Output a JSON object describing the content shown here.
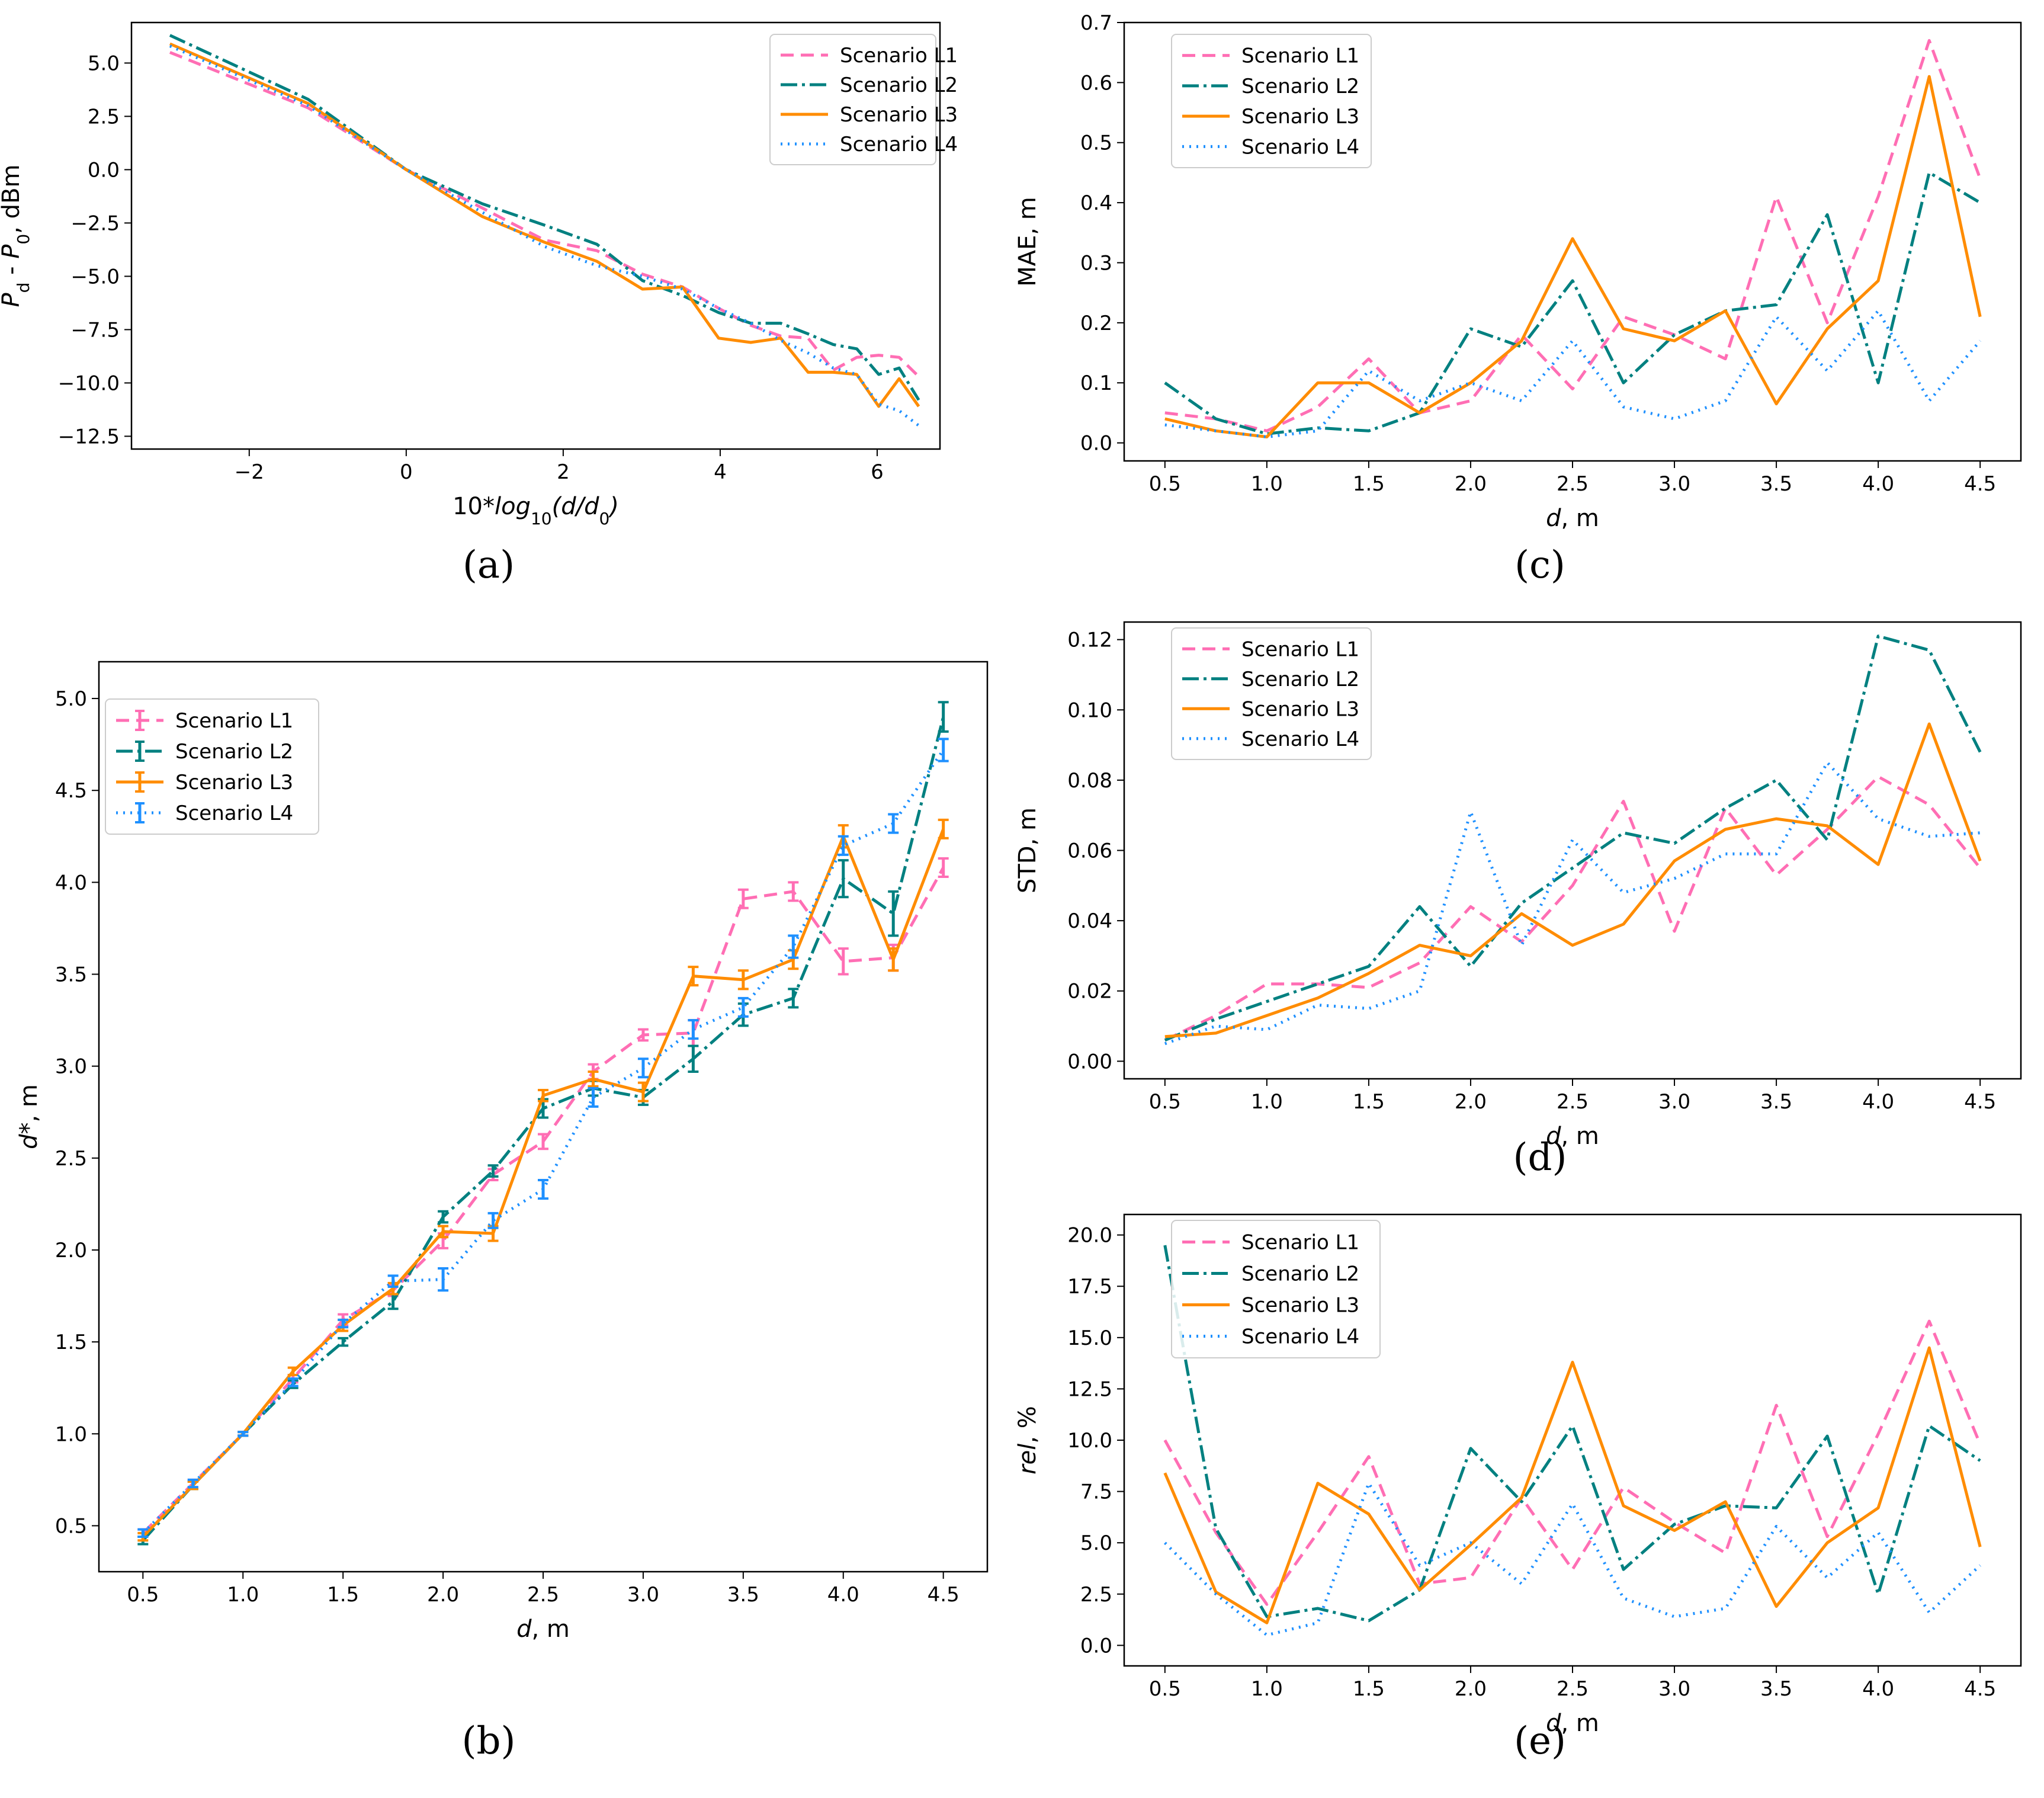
{
  "figure": {
    "panel_labels": [
      "(a)",
      "(b)",
      "(c)",
      "(d)",
      "(e)"
    ]
  },
  "chart_data": [
    {
      "id": "a",
      "panel_label": "(a)",
      "type": "line",
      "title": "",
      "xlabel": "10*log10(d/d0)",
      "ylabel": "Pd - P0, dBm",
      "xlim": [
        -3.5,
        6.8
      ],
      "ylim": [
        -13.1,
        6.9
      ],
      "xticks": [
        -2,
        0,
        2,
        4,
        6
      ],
      "xtick_labels": [
        "−2",
        "0",
        "2",
        "4",
        "6"
      ],
      "yticks": [
        5.0,
        2.5,
        0.0,
        -2.5,
        -5.0,
        -7.5,
        -10.0,
        -12.5
      ],
      "ytick_labels": [
        "5.0",
        "2.5",
        "0.0",
        "−2.5",
        "−5.0",
        "−7.5",
        "−10.0",
        "−12.5"
      ],
      "legend": "top-right",
      "x": [
        -3.01,
        -1.25,
        0,
        0.97,
        1.76,
        2.43,
        3.01,
        3.52,
        3.98,
        4.39,
        4.77,
        5.12,
        5.44,
        5.74,
        6.02,
        6.28,
        6.53
      ],
      "series": [
        {
          "name": "Scenario L1",
          "color": "#ff6eb4",
          "dash": "22,12",
          "values": [
            5.5,
            2.9,
            0.0,
            -1.8,
            -3.3,
            -3.8,
            -4.9,
            -5.5,
            -6.5,
            -7.3,
            -7.8,
            -7.9,
            -9.4,
            -8.8,
            -8.7,
            -8.8,
            -9.7
          ]
        },
        {
          "name": "Scenario L2",
          "color": "#008080",
          "dash": "28,8,5,8",
          "values": [
            6.3,
            3.3,
            0.0,
            -1.6,
            -2.6,
            -3.5,
            -5.2,
            -5.9,
            -6.7,
            -7.2,
            -7.2,
            -7.7,
            -8.2,
            -8.4,
            -9.6,
            -9.3,
            -10.8
          ]
        },
        {
          "name": "Scenario L3",
          "color": "#ff8c00",
          "dash": "",
          "values": [
            5.9,
            3.1,
            0.0,
            -2.2,
            -3.4,
            -4.3,
            -5.6,
            -5.5,
            -7.9,
            -8.1,
            -7.9,
            -9.5,
            -9.5,
            -9.6,
            -11.1,
            -9.8,
            -11.1
          ]
        },
        {
          "name": "Scenario L4",
          "color": "#1e90ff",
          "dash": "3,9",
          "values": [
            5.8,
            3.0,
            0.0,
            -2.0,
            -3.6,
            -4.5,
            -5.0,
            -5.6,
            -6.5,
            -7.2,
            -8.0,
            -8.6,
            -9.3,
            -9.6,
            -11.0,
            -11.3,
            -12.0
          ]
        }
      ]
    },
    {
      "id": "b",
      "panel_label": "(b)",
      "type": "line",
      "title": "",
      "xlabel": "d, m",
      "ylabel": "d*, m",
      "xlim": [
        0.28,
        4.72
      ],
      "ylim": [
        0.25,
        5.2
      ],
      "xticks": [
        0.5,
        1.0,
        1.5,
        2.0,
        2.5,
        3.0,
        3.5,
        4.0,
        4.5
      ],
      "xtick_labels": [
        "0.5",
        "1.0",
        "1.5",
        "2.0",
        "2.5",
        "3.0",
        "3.5",
        "4.0",
        "4.5"
      ],
      "yticks": [
        0.5,
        1.0,
        1.5,
        2.0,
        2.5,
        3.0,
        3.5,
        4.0,
        4.5,
        5.0
      ],
      "ytick_labels": [
        "0.5",
        "1.0",
        "1.5",
        "2.0",
        "2.5",
        "3.0",
        "3.5",
        "4.0",
        "4.5",
        "5.0"
      ],
      "legend": "top-left",
      "error_bars": true,
      "x": [
        0.5,
        0.75,
        1.0,
        1.25,
        1.5,
        1.75,
        2.0,
        2.25,
        2.5,
        2.75,
        3.0,
        3.25,
        3.5,
        3.75,
        4.0,
        4.25,
        4.5
      ],
      "series": [
        {
          "name": "Scenario L1",
          "color": "#ff6eb4",
          "dash": "22,12",
          "values": [
            0.46,
            0.73,
            1.0,
            1.3,
            1.62,
            1.78,
            2.05,
            2.41,
            2.59,
            2.97,
            3.17,
            3.18,
            3.91,
            3.95,
            3.57,
            3.59,
            4.08
          ],
          "errors": [
            0.02,
            0.02,
            0.01,
            0.02,
            0.03,
            0.03,
            0.04,
            0.03,
            0.04,
            0.04,
            0.03,
            0.07,
            0.05,
            0.05,
            0.07,
            0.07,
            0.05
          ]
        },
        {
          "name": "Scenario L2",
          "color": "#008080",
          "dash": "28,8,5,8",
          "values": [
            0.42,
            0.72,
            1.0,
            1.27,
            1.5,
            1.72,
            2.18,
            2.43,
            2.77,
            2.88,
            2.83,
            3.04,
            3.28,
            3.37,
            4.02,
            3.83,
            4.9
          ],
          "errors": [
            0.02,
            0.02,
            0.01,
            0.02,
            0.02,
            0.04,
            0.03,
            0.03,
            0.05,
            0.04,
            0.04,
            0.07,
            0.06,
            0.05,
            0.1,
            0.12,
            0.08
          ]
        },
        {
          "name": "Scenario L3",
          "color": "#ff8c00",
          "dash": "",
          "values": [
            0.44,
            0.72,
            1.0,
            1.34,
            1.59,
            1.79,
            2.1,
            2.09,
            2.84,
            2.93,
            2.86,
            3.49,
            3.47,
            3.58,
            4.25,
            3.58,
            4.29
          ],
          "errors": [
            0.02,
            0.02,
            0.01,
            0.02,
            0.03,
            0.03,
            0.03,
            0.04,
            0.03,
            0.04,
            0.05,
            0.05,
            0.05,
            0.05,
            0.06,
            0.06,
            0.05
          ]
        },
        {
          "name": "Scenario L4",
          "color": "#1e90ff",
          "dash": "3,9",
          "values": [
            0.46,
            0.73,
            1.0,
            1.28,
            1.6,
            1.83,
            1.84,
            2.16,
            2.33,
            2.83,
            2.99,
            3.2,
            3.32,
            3.65,
            4.2,
            4.32,
            4.72
          ],
          "errors": [
            0.02,
            0.02,
            0.01,
            0.02,
            0.02,
            0.03,
            0.06,
            0.04,
            0.05,
            0.05,
            0.05,
            0.05,
            0.05,
            0.06,
            0.05,
            0.05,
            0.06
          ]
        }
      ]
    },
    {
      "id": "c",
      "panel_label": "(c)",
      "type": "line",
      "title": "",
      "xlabel": "d, m",
      "ylabel": "MAE, m",
      "xlim": [
        0.3,
        4.7
      ],
      "ylim": [
        -0.03,
        0.7
      ],
      "xticks": [
        0.5,
        1.0,
        1.5,
        2.0,
        2.5,
        3.0,
        3.5,
        4.0,
        4.5
      ],
      "xtick_labels": [
        "0.5",
        "1.0",
        "1.5",
        "2.0",
        "2.5",
        "3.0",
        "3.5",
        "4.0",
        "4.5"
      ],
      "yticks": [
        0.0,
        0.1,
        0.2,
        0.3,
        0.4,
        0.5,
        0.6,
        0.7
      ],
      "ytick_labels": [
        "0.0",
        "0.1",
        "0.2",
        "0.3",
        "0.4",
        "0.5",
        "0.6",
        "0.7"
      ],
      "legend": "top-left",
      "x": [
        0.5,
        0.75,
        1.0,
        1.25,
        1.5,
        1.75,
        2.0,
        2.25,
        2.5,
        2.75,
        3.0,
        3.25,
        3.5,
        3.75,
        4.0,
        4.25,
        4.5
      ],
      "series": [
        {
          "name": "Scenario L1",
          "color": "#ff6eb4",
          "dash": "22,12",
          "values": [
            0.05,
            0.04,
            0.02,
            0.06,
            0.14,
            0.05,
            0.07,
            0.18,
            0.09,
            0.21,
            0.18,
            0.14,
            0.41,
            0.2,
            0.41,
            0.67,
            0.44
          ]
        },
        {
          "name": "Scenario L2",
          "color": "#008080",
          "dash": "28,8,5,8",
          "values": [
            0.1,
            0.04,
            0.015,
            0.025,
            0.02,
            0.05,
            0.19,
            0.16,
            0.27,
            0.1,
            0.18,
            0.22,
            0.23,
            0.38,
            0.1,
            0.45,
            0.4
          ]
        },
        {
          "name": "Scenario L3",
          "color": "#ff8c00",
          "dash": "",
          "values": [
            0.04,
            0.02,
            0.01,
            0.1,
            0.1,
            0.05,
            0.1,
            0.17,
            0.34,
            0.19,
            0.17,
            0.22,
            0.065,
            0.19,
            0.27,
            0.61,
            0.21
          ]
        },
        {
          "name": "Scenario L4",
          "color": "#1e90ff",
          "dash": "3,9",
          "values": [
            0.03,
            0.02,
            0.01,
            0.02,
            0.12,
            0.07,
            0.1,
            0.07,
            0.17,
            0.06,
            0.04,
            0.07,
            0.21,
            0.12,
            0.22,
            0.07,
            0.17
          ]
        }
      ]
    },
    {
      "id": "d",
      "panel_label": "(d)",
      "type": "line",
      "title": "",
      "xlabel": "d, m",
      "ylabel": "STD, m",
      "xlim": [
        0.3,
        4.7
      ],
      "ylim": [
        -0.005,
        0.125
      ],
      "xticks": [
        0.5,
        1.0,
        1.5,
        2.0,
        2.5,
        3.0,
        3.5,
        4.0,
        4.5
      ],
      "xtick_labels": [
        "0.5",
        "1.0",
        "1.5",
        "2.0",
        "2.5",
        "3.0",
        "3.5",
        "4.0",
        "4.5"
      ],
      "yticks": [
        0.0,
        0.02,
        0.04,
        0.06,
        0.08,
        0.1,
        0.12
      ],
      "ytick_labels": [
        "0.00",
        "0.02",
        "0.04",
        "0.06",
        "0.08",
        "0.10",
        "0.12"
      ],
      "legend": "top-left",
      "x": [
        0.5,
        0.75,
        1.0,
        1.25,
        1.5,
        1.75,
        2.0,
        2.25,
        2.5,
        2.75,
        3.0,
        3.25,
        3.5,
        3.75,
        4.0,
        4.25,
        4.5
      ],
      "series": [
        {
          "name": "Scenario L1",
          "color": "#ff6eb4",
          "dash": "22,12",
          "values": [
            0.006,
            0.013,
            0.022,
            0.022,
            0.021,
            0.028,
            0.044,
            0.034,
            0.05,
            0.074,
            0.037,
            0.072,
            0.053,
            0.066,
            0.081,
            0.073,
            0.055
          ]
        },
        {
          "name": "Scenario L2",
          "color": "#008080",
          "dash": "28,8,5,8",
          "values": [
            0.006,
            0.012,
            0.017,
            0.022,
            0.027,
            0.044,
            0.027,
            0.045,
            0.055,
            0.065,
            0.062,
            0.072,
            0.08,
            0.063,
            0.121,
            0.117,
            0.088
          ]
        },
        {
          "name": "Scenario L3",
          "color": "#ff8c00",
          "dash": "",
          "values": [
            0.007,
            0.008,
            0.013,
            0.018,
            0.025,
            0.033,
            0.03,
            0.042,
            0.033,
            0.039,
            0.057,
            0.066,
            0.069,
            0.067,
            0.056,
            0.096,
            0.057
          ]
        },
        {
          "name": "Scenario L4",
          "color": "#1e90ff",
          "dash": "3,9",
          "values": [
            0.005,
            0.01,
            0.009,
            0.016,
            0.015,
            0.02,
            0.071,
            0.033,
            0.063,
            0.048,
            0.052,
            0.059,
            0.059,
            0.085,
            0.069,
            0.064,
            0.065
          ]
        }
      ]
    },
    {
      "id": "e",
      "panel_label": "(e)",
      "type": "line",
      "title": "",
      "xlabel": "d, m",
      "ylabel": "rel, %",
      "xlim": [
        0.3,
        4.7
      ],
      "ylim": [
        -1.0,
        21.0
      ],
      "xticks": [
        0.5,
        1.0,
        1.5,
        2.0,
        2.5,
        3.0,
        3.5,
        4.0,
        4.5
      ],
      "xtick_labels": [
        "0.5",
        "1.0",
        "1.5",
        "2.0",
        "2.5",
        "3.0",
        "3.5",
        "4.0",
        "4.5"
      ],
      "yticks": [
        0.0,
        2.5,
        5.0,
        7.5,
        10.0,
        12.5,
        15.0,
        17.5,
        20.0
      ],
      "ytick_labels": [
        "0.0",
        "2.5",
        "5.0",
        "7.5",
        "10.0",
        "12.5",
        "15.0",
        "17.5",
        "20.0"
      ],
      "legend": "top-left",
      "x": [
        0.5,
        0.75,
        1.0,
        1.25,
        1.5,
        1.75,
        2.0,
        2.25,
        2.5,
        2.75,
        3.0,
        3.25,
        3.5,
        3.75,
        4.0,
        4.25,
        4.5
      ],
      "series": [
        {
          "name": "Scenario L1",
          "color": "#ff6eb4",
          "dash": "22,12",
          "values": [
            10.0,
            5.5,
            2.0,
            5.5,
            9.2,
            3.0,
            3.3,
            7.2,
            3.7,
            7.7,
            6.0,
            4.5,
            11.7,
            5.3,
            10.3,
            15.8,
            9.8
          ]
        },
        {
          "name": "Scenario L2",
          "color": "#008080",
          "dash": "28,8,5,8",
          "values": [
            19.5,
            5.7,
            1.4,
            1.8,
            1.2,
            2.7,
            9.6,
            7.0,
            10.7,
            3.7,
            5.9,
            6.8,
            6.7,
            10.2,
            2.5,
            10.7,
            9.0
          ]
        },
        {
          "name": "Scenario L3",
          "color": "#ff8c00",
          "dash": "",
          "values": [
            8.4,
            2.6,
            1.1,
            7.9,
            6.4,
            2.7,
            4.9,
            7.2,
            13.8,
            6.8,
            5.6,
            7.0,
            1.9,
            5.0,
            6.7,
            14.5,
            4.8
          ]
        },
        {
          "name": "Scenario L4",
          "color": "#1e90ff",
          "dash": "3,9",
          "values": [
            5.0,
            2.5,
            0.5,
            1.1,
            7.9,
            3.9,
            5.0,
            3.0,
            6.9,
            2.3,
            1.4,
            1.8,
            5.8,
            3.3,
            5.5,
            1.6,
            3.9
          ]
        }
      ]
    }
  ]
}
